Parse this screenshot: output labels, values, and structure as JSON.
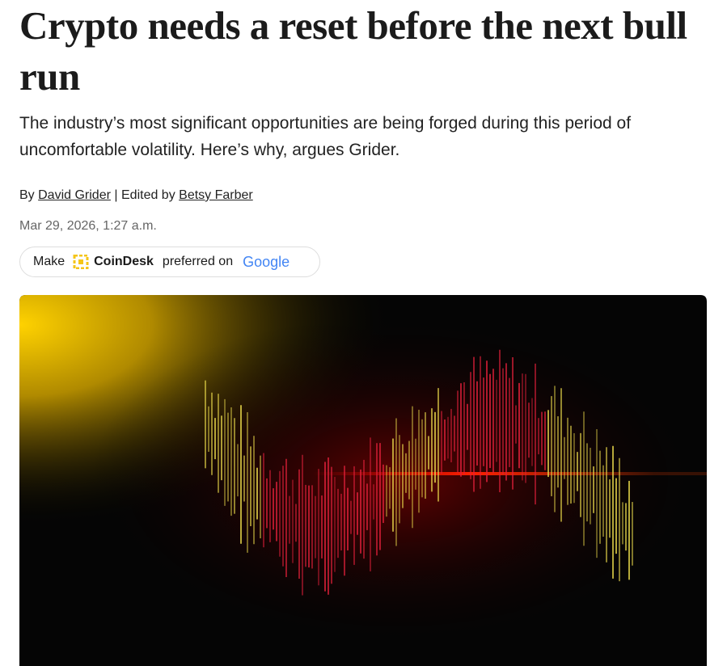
{
  "article": {
    "headline": "Crypto needs a reset before the next bull run",
    "subheadline": "The industry’s most significant opportunities are being forged during this period of uncomfortable volatility. Here’s why, argues Grider.",
    "byline": {
      "prefix": "By",
      "author": "David Grider",
      "separator": "| Edited by",
      "editor": "Betsy Farber"
    },
    "date": "Mar 29, 2026, 1:27 a.m.",
    "preferred_button": {
      "make": "Make",
      "brand": "CoinDesk",
      "middle": "preferred on",
      "google": "Google"
    }
  }
}
